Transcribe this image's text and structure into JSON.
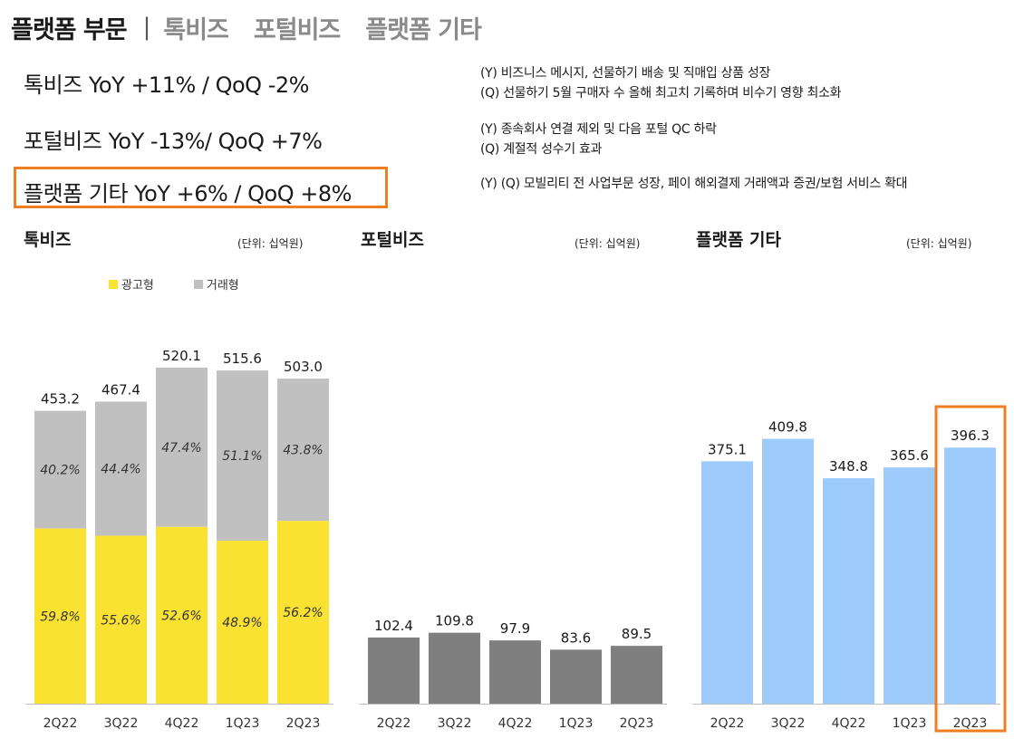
{
  "header": {
    "active_tab": "플랫폼 부문",
    "separator": "|",
    "tabs": [
      "톡비즈",
      "포털비즈",
      "플랫폼 기타"
    ]
  },
  "summary": [
    {
      "label": "톡비즈  YoY +11% / QoQ -2%",
      "notes": [
        "(Y) 비즈니스 메시지, 선물하기 배송 및 직매입 상품 성장",
        "(Q) 선물하기 5월 구매자 수 올해 최고치 기록하며 비수기 영향 최소화"
      ]
    },
    {
      "label": "포털비즈  YoY  -13%/ QoQ +7%",
      "notes": [
        "(Y) 종속회사 연결 제외 및 다음 포털 QC 하락",
        "(Q) 계절적 성수기 효과"
      ]
    },
    {
      "label": "플랫폼 기타  YoY +6% / QoQ +8%",
      "notes": [
        "(Y) (Q) 모빌리티 전 사업부문 성장, 페이 해외결제 거래액과 증권/보험 서비스 확대"
      ]
    }
  ],
  "highlight_color": "#f07d22",
  "chart_data": [
    {
      "type": "bar",
      "stacked": true,
      "title": "톡비즈",
      "unit": "(단위: 십억원)",
      "categories": [
        "2Q22",
        "3Q22",
        "4Q22",
        "1Q23",
        "2Q23"
      ],
      "totals": [
        453.2,
        467.4,
        520.1,
        515.6,
        503.0
      ],
      "total_labels": [
        "453.2",
        "467.4",
        "520.1",
        "515.6",
        "503.0"
      ],
      "series": [
        {
          "name": "광고형",
          "color": "#fae232",
          "share_pct": [
            59.8,
            55.6,
            52.6,
            48.9,
            56.2
          ],
          "labels": [
            "59.8%",
            "55.6%",
            "52.6%",
            "48.9%",
            "56.2%"
          ]
        },
        {
          "name": "거래형",
          "color": "#c0c0c0",
          "share_pct": [
            40.2,
            44.4,
            47.4,
            51.1,
            43.8
          ],
          "labels": [
            "40.2%",
            "44.4%",
            "47.4%",
            "51.1%",
            "43.8%"
          ]
        }
      ],
      "legend_position": "top-left",
      "ylim": [
        0,
        600
      ]
    },
    {
      "type": "bar",
      "title": "포털비즈",
      "unit": "(단위: 십억원)",
      "categories": [
        "2Q22",
        "3Q22",
        "4Q22",
        "1Q23",
        "2Q23"
      ],
      "values": [
        102.4,
        109.8,
        97.9,
        83.6,
        89.5
      ],
      "value_labels": [
        "102.4",
        "109.8",
        "97.9",
        "83.6",
        "89.5"
      ],
      "color": "#7f7f7f",
      "ylim": [
        0,
        600
      ]
    },
    {
      "type": "bar",
      "title": "플랫폼 기타",
      "unit": "(단위: 십억원)",
      "categories": [
        "2Q22",
        "3Q22",
        "4Q22",
        "1Q23",
        "2Q23"
      ],
      "values": [
        375.1,
        409.8,
        348.8,
        365.6,
        396.3
      ],
      "value_labels": [
        "375.1",
        "409.8",
        "348.8",
        "365.6",
        "396.3"
      ],
      "color": "#9dcbfb",
      "highlight_index": 4,
      "ylim": [
        0,
        600
      ]
    }
  ]
}
